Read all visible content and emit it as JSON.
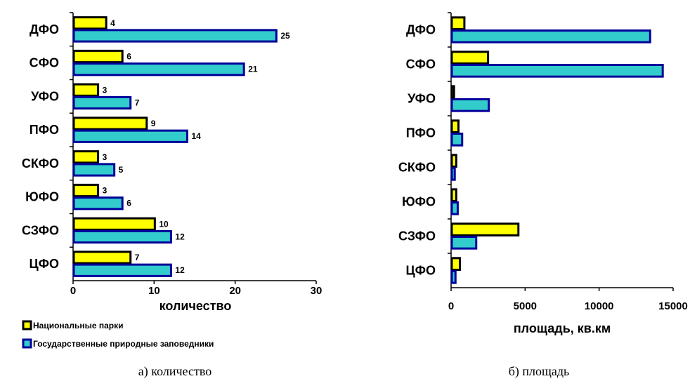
{
  "colors": {
    "national_parks": "#ffff00",
    "national_parks_border": "#000000",
    "reserves": "#33cccc",
    "reserves_border": "#000099"
  },
  "legend": {
    "national_parks": "Национальные парки",
    "reserves": "Государственные природные заповедники"
  },
  "chart_data": [
    {
      "type": "bar",
      "orientation": "horizontal",
      "caption": "а) количество",
      "xlabel": "количество",
      "xlim": [
        0,
        30
      ],
      "xticks": [
        0,
        10,
        20,
        30
      ],
      "categories": [
        "ДФО",
        "СФО",
        "УФО",
        "ПФО",
        "СКФО",
        "ЮФО",
        "СЗФО",
        "ЦФО"
      ],
      "series": [
        {
          "name": "Национальные парки",
          "values": [
            4,
            6,
            3,
            9,
            3,
            3,
            10,
            7
          ]
        },
        {
          "name": "Государственные природные заповедники",
          "values": [
            25,
            21,
            7,
            14,
            5,
            6,
            12,
            12
          ]
        }
      ],
      "data_labels": true
    },
    {
      "type": "bar",
      "orientation": "horizontal",
      "caption": "б) площадь",
      "xlabel": "площадь, кв.км",
      "xlim": [
        0,
        15000
      ],
      "xticks": [
        0,
        5000,
        10000,
        15000
      ],
      "categories": [
        "ДФО",
        "СФО",
        "УФО",
        "ПФО",
        "СКФО",
        "ЮФО",
        "СЗФО",
        "ЦФО"
      ],
      "series": [
        {
          "name": "Национальные парки",
          "values": [
            850,
            2450,
            150,
            450,
            300,
            300,
            4500,
            550
          ]
        },
        {
          "name": "Государственные природные заповедники",
          "values": [
            13400,
            14250,
            2500,
            700,
            200,
            400,
            1650,
            250
          ]
        }
      ],
      "data_labels": false
    }
  ]
}
